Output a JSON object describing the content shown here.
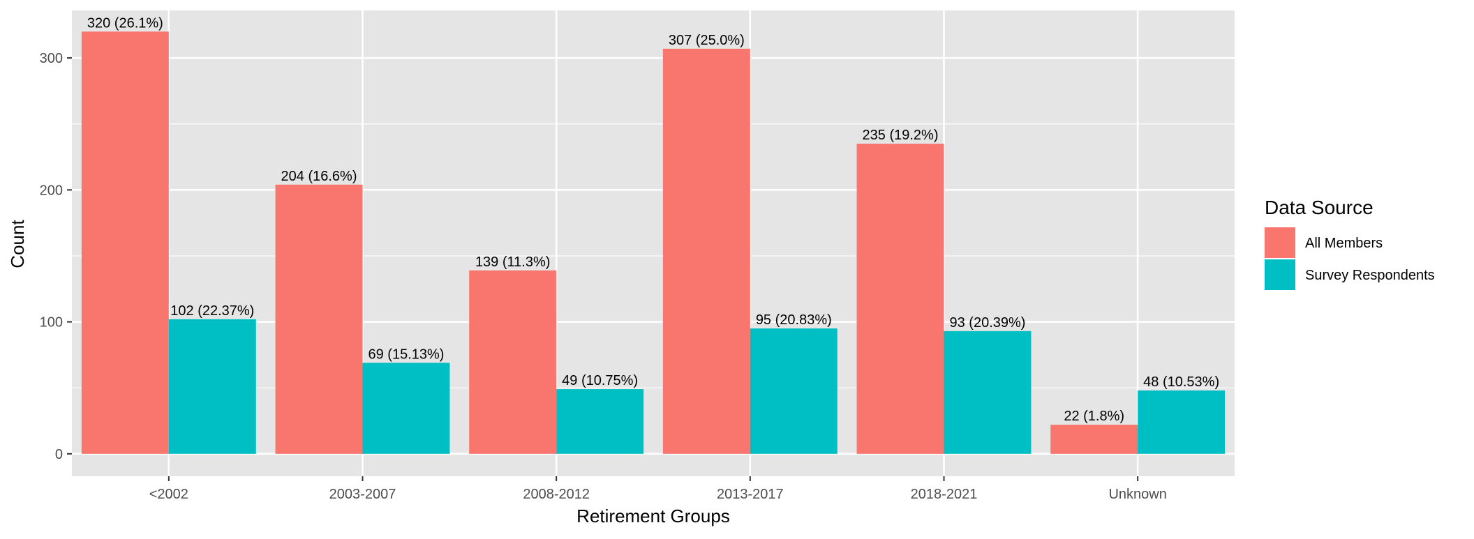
{
  "chart_data": {
    "type": "bar",
    "title": "",
    "xlabel": "Retirement Groups",
    "ylabel": "Count",
    "ylim": [
      -17,
      336
    ],
    "yticks": [
      0,
      100,
      200,
      300
    ],
    "ytick_labels": [
      "0",
      "100",
      "200",
      "300"
    ],
    "categories": [
      "<2002",
      "2003-2007",
      "2008-2012",
      "2013-2017",
      "2018-2021",
      "Unknown"
    ],
    "series": [
      {
        "name": "All Members",
        "color": "#F8766D",
        "values": [
          320,
          204,
          139,
          307,
          235,
          22
        ],
        "labels": [
          "320 (26.1%)",
          "204 (16.6%)",
          "139 (11.3%)",
          "307 (25.0%)",
          "235 (19.2%)",
          "22 (1.8%)"
        ]
      },
      {
        "name": "Survey Respondents",
        "color": "#00BFC4",
        "values": [
          102,
          69,
          49,
          95,
          93,
          48
        ],
        "labels": [
          "102 (22.37%)",
          "69 (15.13%)",
          "49 (10.75%)",
          "95 (20.83%)",
          "93 (20.39%)",
          "48 (10.53%)"
        ]
      }
    ],
    "legend": {
      "title": "Data Source",
      "position": "right"
    },
    "grid": true,
    "panel_background": "#E5E5E5",
    "grid_color": "#FFFFFF"
  }
}
